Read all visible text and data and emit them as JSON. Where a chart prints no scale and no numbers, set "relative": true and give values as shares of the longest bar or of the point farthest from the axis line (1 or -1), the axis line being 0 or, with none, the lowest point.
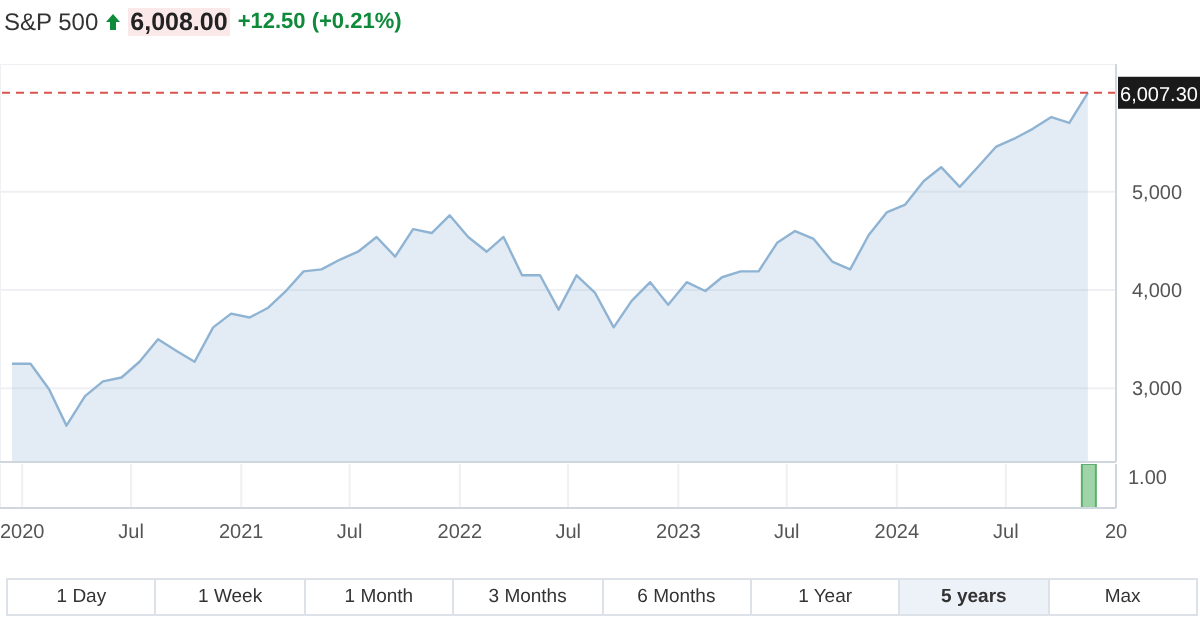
{
  "chart_data": [
    {
      "type": "area",
      "title": "S&P 500",
      "subtitle": "6,008.00",
      "annotations": [
        "+12.50 (+0.21%)",
        "1 Day",
        "1 Week",
        "1 Month",
        "3 Months",
        "6 Months",
        "1 Year",
        "5 years",
        "Max"
      ],
      "x": [
        "2019-12-15",
        "2020-01-15",
        "2020-02-15",
        "2020-03-15",
        "2020-04-15",
        "2020-05-15",
        "2020-06-15",
        "2020-07-15",
        "2020-08-15",
        "2020-09-15",
        "2020-10-15",
        "2020-11-15",
        "2020-12-15",
        "2021-01-15",
        "2021-02-15",
        "2021-03-15",
        "2021-04-15",
        "2021-05-15",
        "2021-06-15",
        "2021-07-15",
        "2021-08-15",
        "2021-09-15",
        "2021-10-15",
        "2021-11-15",
        "2021-12-15",
        "2022-01-15",
        "2022-02-15",
        "2022-03-15",
        "2022-04-15",
        "2022-05-15",
        "2022-06-15",
        "2022-07-15",
        "2022-08-15",
        "2022-09-15",
        "2022-10-15",
        "2022-11-15",
        "2022-12-15",
        "2023-01-15",
        "2023-02-15",
        "2023-03-15",
        "2023-04-15",
        "2023-05-15",
        "2023-06-15",
        "2023-07-15",
        "2023-08-15",
        "2023-09-15",
        "2023-10-15",
        "2023-11-15",
        "2023-12-15",
        "2024-01-15",
        "2024-02-15",
        "2024-03-15",
        "2024-04-15",
        "2024-05-15",
        "2024-06-15",
        "2024-07-15",
        "2024-08-15",
        "2024-09-15",
        "2024-10-15",
        "2024-11-15"
      ],
      "series": [
        {
          "color": "#8fb3d3",
          "values": [
            3250,
            3250,
            2990,
            2620,
            2920,
            3070,
            3110,
            3270,
            3500,
            3380,
            3270,
            3620,
            3760,
            3720,
            3820,
            3980,
            4190,
            4210,
            4310,
            4390,
            4540,
            4340,
            4620,
            4580,
            4760,
            4540,
            4390,
            4540,
            4150,
            4150,
            3800,
            4150,
            3970,
            3620,
            3890,
            4080,
            3850,
            4080,
            3990,
            4130,
            4190,
            4190,
            4480,
            4600,
            4520,
            4290,
            4210,
            4560,
            4790,
            4870,
            5110,
            5250,
            5050,
            5250,
            5460,
            5540,
            5640,
            5760,
            5700,
            6007
          ]
        }
      ],
      "xlim": [
        "2019-11-25",
        "2025-01-01"
      ],
      "xticks": [
        {
          "value": "2020-01-01",
          "label": null
        },
        {
          "value": "2020-07-01",
          "label": null
        },
        {
          "value": "2021-01-01",
          "label": null
        },
        {
          "value": "2021-07-01",
          "label": null
        },
        {
          "value": "2022-01-01",
          "label": null
        },
        {
          "value": "2022-07-01",
          "label": null
        },
        {
          "value": "2023-01-01",
          "label": null
        },
        {
          "value": "2023-07-01",
          "label": null
        },
        {
          "value": "2024-01-01",
          "label": null
        },
        {
          "value": "2024-07-01",
          "label": null
        },
        {
          "value": "2025-01-01",
          "label": null
        }
      ],
      "ylim": [
        2250,
        6300
      ],
      "yticks": [
        {
          "value": 3000,
          "label": "3,000"
        },
        {
          "value": 4000,
          "label": "4,000"
        },
        {
          "value": 5000,
          "label": "5,000"
        }
      ],
      "ref_lines": [
        {
          "axis": "y",
          "value": 6007.3,
          "label": "6,007.30",
          "color": "#d9534f",
          "line_style": "dashed"
        }
      ],
      "grid": true,
      "tick_labels": "y",
      "legend": false
    },
    {
      "type": "bar",
      "relative": true,
      "x": [
        "2024-11-15"
      ],
      "series": [
        {
          "color": "#9fd3a8",
          "values": [
            1
          ]
        }
      ],
      "annotations": [
        "1.00"
      ],
      "xlim": [
        "2019-11-25",
        "2025-01-01"
      ],
      "xticks": [
        {
          "value": "2020-01-01",
          "label": "2020"
        },
        {
          "value": "2020-07-01",
          "label": "Jul"
        },
        {
          "value": "2021-01-01",
          "label": "2021"
        },
        {
          "value": "2021-07-01",
          "label": "Jul"
        },
        {
          "value": "2022-01-01",
          "label": "2022"
        },
        {
          "value": "2022-07-01",
          "label": "Jul"
        },
        {
          "value": "2023-01-01",
          "label": "2023"
        },
        {
          "value": "2023-07-01",
          "label": "Jul"
        },
        {
          "value": "2024-01-01",
          "label": "2024"
        },
        {
          "value": "2024-07-01",
          "label": "Jul"
        },
        {
          "value": "2025-01-01",
          "label": "20"
        }
      ],
      "grid": "x",
      "tick_labels": "x",
      "legend": false
    }
  ]
}
